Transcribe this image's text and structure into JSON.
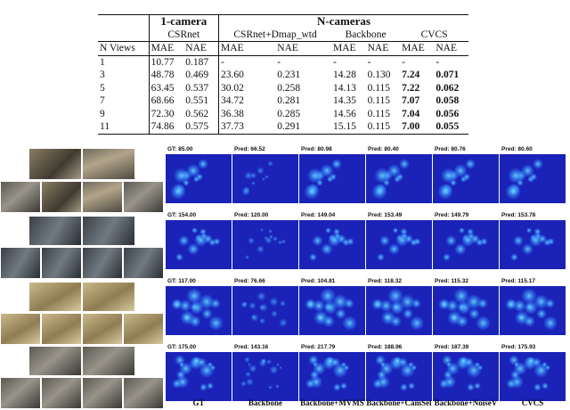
{
  "table": {
    "group_headers": [
      "1-camera",
      "N-cameras"
    ],
    "model_headers": [
      "CSRnet",
      "CSRnet+Dmap_wtd",
      "Backbone",
      "CVCS"
    ],
    "col_headers": [
      "N Views",
      "MAE",
      "NAE",
      "MAE",
      "NAE",
      "MAE",
      "NAE",
      "MAE",
      "NAE"
    ],
    "rows": [
      [
        "1",
        "10.77",
        "0.187",
        "-",
        "-",
        "-",
        "-",
        "-",
        "-"
      ],
      [
        "3",
        "48.78",
        "0.469",
        "23.60",
        "0.231",
        "14.28",
        "0.130",
        "7.24",
        "0.071"
      ],
      [
        "5",
        "63.45",
        "0.537",
        "30.02",
        "0.258",
        "14.13",
        "0.115",
        "7.22",
        "0.062"
      ],
      [
        "7",
        "68.66",
        "0.551",
        "34.72",
        "0.281",
        "14.35",
        "0.115",
        "7.07",
        "0.058"
      ],
      [
        "9",
        "72.30",
        "0.562",
        "36.38",
        "0.285",
        "14.56",
        "0.115",
        "7.04",
        "0.056"
      ],
      [
        "11",
        "74.86",
        "0.575",
        "37.73",
        "0.291",
        "15.15",
        "0.115",
        "7.00",
        "0.055"
      ]
    ]
  },
  "grid": {
    "methods": [
      "GT",
      "Backbone",
      "Backbone+MVMS",
      "Backbone+CamSel",
      "Backbone+NoiseV",
      "CVCS"
    ],
    "rows": [
      [
        "GT: 85.00",
        "Pred: 66.52",
        "Pred: 80.98",
        "Pred: 80.40",
        "Pred: 80.76",
        "Pred: 80.60"
      ],
      [
        "GT: 154.00",
        "Pred: 120.00",
        "Pred: 149.04",
        "Pred: 153.49",
        "Pred: 149.79",
        "Pred: 153.78"
      ],
      [
        "GT: 117.00",
        "Pred: 76.66",
        "Pred: 104.81",
        "Pred: 118.32",
        "Pred: 115.32",
        "Pred: 115.17"
      ],
      [
        "GT: 175.00",
        "Pred: 143.16",
        "Pred: 217.79",
        "Pred: 188.96",
        "Pred: 187.39",
        "Pred: 175.93"
      ]
    ]
  }
}
